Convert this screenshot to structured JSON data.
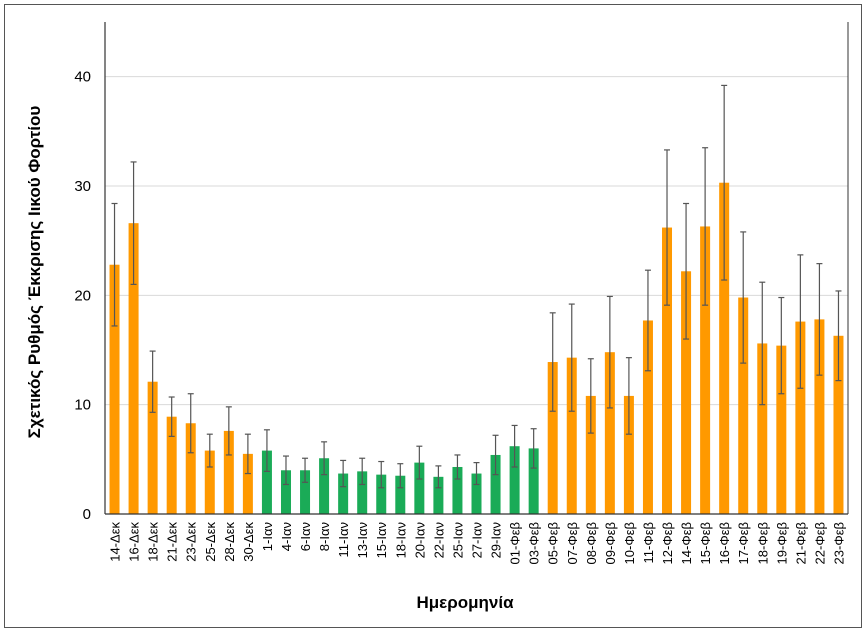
{
  "chart_data": {
    "type": "bar",
    "title": "",
    "xlabel": "Ημερομηνία",
    "ylabel": "Σχετικός Ρυθμός Έκκρισης Ιικού Φορτίου",
    "ylim": [
      0,
      45
    ],
    "yticks": [
      0,
      10,
      20,
      30,
      40
    ],
    "grid": true,
    "legend": "none",
    "colors": {
      "orange": "#FF9900",
      "green": "#1AAB57",
      "error": "#555555"
    },
    "categories": [
      "14-Δεκ",
      "16-Δεκ",
      "18-Δεκ",
      "21-Δεκ",
      "23-Δεκ",
      "25-Δεκ",
      "28-Δεκ",
      "30-Δεκ",
      "1-Ιαν",
      "4-Ιαν",
      "6-Ιαν",
      "8-Ιαν",
      "11-Ιαν",
      "13-Ιαν",
      "15-Ιαν",
      "18-Ιαν",
      "20-Ιαν",
      "22-Ιαν",
      "25-Ιαν",
      "27-Ιαν",
      "29-Ιαν",
      "01-Φεβ",
      "03-Φεβ",
      "05-Φεβ",
      "07-Φεβ",
      "08-Φεβ",
      "09-Φεβ",
      "10-Φεβ",
      "11-Φεβ",
      "12-Φεβ",
      "14-Φεβ",
      "15-Φεβ",
      "16-Φεβ",
      "17-Φεβ",
      "18-Φεβ",
      "19-Φεβ",
      "21-Φεβ",
      "22-Φεβ",
      "23-Φεβ"
    ],
    "values": [
      22.8,
      26.6,
      12.1,
      8.9,
      8.3,
      5.8,
      7.6,
      5.5,
      5.8,
      4.0,
      4.0,
      5.1,
      3.7,
      3.9,
      3.6,
      3.5,
      4.7,
      3.4,
      4.3,
      3.7,
      5.4,
      6.2,
      6.0,
      13.9,
      14.3,
      10.8,
      14.8,
      10.8,
      17.7,
      26.2,
      22.2,
      26.3,
      30.3,
      19.8,
      15.6,
      15.4,
      17.6,
      17.8,
      16.3
    ],
    "errors": [
      5.6,
      5.6,
      2.8,
      1.8,
      2.7,
      1.5,
      2.2,
      1.8,
      1.9,
      1.3,
      1.1,
      1.5,
      1.2,
      1.2,
      1.2,
      1.1,
      1.5,
      1.0,
      1.1,
      1.0,
      1.8,
      1.9,
      1.8,
      4.5,
      4.9,
      3.4,
      5.1,
      3.5,
      4.6,
      7.1,
      6.2,
      7.2,
      8.9,
      6.0,
      5.6,
      4.4,
      6.1,
      5.1,
      4.1
    ],
    "bar_color_group": [
      "orange",
      "orange",
      "orange",
      "orange",
      "orange",
      "orange",
      "orange",
      "orange",
      "green",
      "green",
      "green",
      "green",
      "green",
      "green",
      "green",
      "green",
      "green",
      "green",
      "green",
      "green",
      "green",
      "green",
      "green",
      "orange",
      "orange",
      "orange",
      "orange",
      "orange",
      "orange",
      "orange",
      "orange",
      "orange",
      "orange",
      "orange",
      "orange",
      "orange",
      "orange",
      "orange",
      "orange"
    ]
  }
}
